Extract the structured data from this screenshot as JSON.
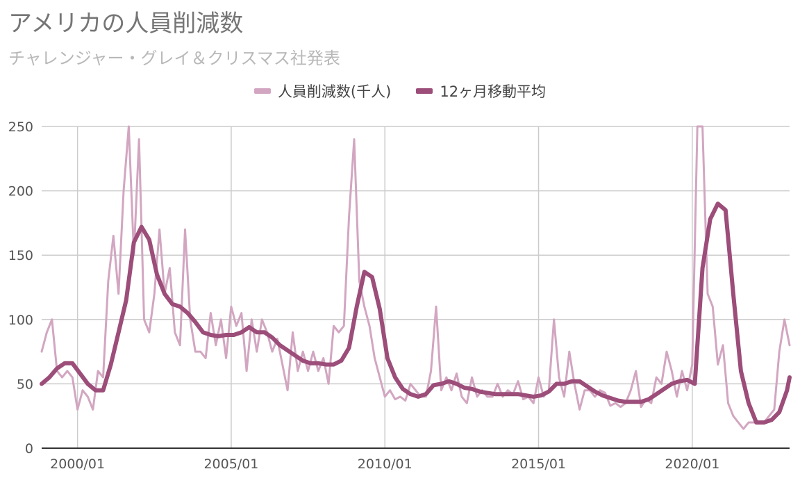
{
  "title": "アメリカの人員削減数",
  "subtitle": "チャレンジャー・グレイ＆クリスマス社発表",
  "colors": {
    "raw": "#d2a6c1",
    "avg": "#9c4d79",
    "grid": "#cccccc",
    "axis": "#333333"
  },
  "chart_data": {
    "type": "line",
    "title": "アメリカの人員削減数",
    "subtitle": "チャレンジャー・グレイ＆クリスマス社発表",
    "legend_position": "top",
    "grid": true,
    "ylim": [
      0,
      250
    ],
    "y_ticks": [
      0,
      50,
      100,
      150,
      200,
      250
    ],
    "x_range": [
      "1998-11",
      "2023-03"
    ],
    "x_ticks": [
      {
        "date": "2000-01",
        "label": "2000/01"
      },
      {
        "date": "2005-01",
        "label": "2005/01"
      },
      {
        "date": "2010-01",
        "label": "2010/01"
      },
      {
        "date": "2015-01",
        "label": "2015/01"
      },
      {
        "date": "2020-01",
        "label": "2020/01"
      }
    ],
    "series": [
      {
        "name": "人員削減数(千人)",
        "color": "#d2a6c1",
        "width": 3,
        "points": [
          [
            "1998-11",
            75
          ],
          [
            "1999-01",
            90
          ],
          [
            "1999-03",
            100
          ],
          [
            "1999-05",
            60
          ],
          [
            "1999-07",
            55
          ],
          [
            "1999-09",
            60
          ],
          [
            "1999-11",
            55
          ],
          [
            "2000-01",
            30
          ],
          [
            "2000-03",
            45
          ],
          [
            "2000-05",
            40
          ],
          [
            "2000-07",
            30
          ],
          [
            "2000-09",
            60
          ],
          [
            "2000-11",
            55
          ],
          [
            "2001-01",
            130
          ],
          [
            "2001-03",
            165
          ],
          [
            "2001-05",
            120
          ],
          [
            "2001-07",
            200
          ],
          [
            "2001-09",
            250
          ],
          [
            "2001-11",
            150
          ],
          [
            "2002-01",
            240
          ],
          [
            "2002-03",
            100
          ],
          [
            "2002-05",
            90
          ],
          [
            "2002-07",
            120
          ],
          [
            "2002-09",
            170
          ],
          [
            "2002-11",
            120
          ],
          [
            "2003-01",
            140
          ],
          [
            "2003-03",
            90
          ],
          [
            "2003-05",
            80
          ],
          [
            "2003-07",
            170
          ],
          [
            "2003-09",
            100
          ],
          [
            "2003-11",
            75
          ],
          [
            "2004-01",
            75
          ],
          [
            "2004-03",
            70
          ],
          [
            "2004-05",
            105
          ],
          [
            "2004-07",
            80
          ],
          [
            "2004-09",
            100
          ],
          [
            "2004-11",
            70
          ],
          [
            "2005-01",
            110
          ],
          [
            "2005-03",
            95
          ],
          [
            "2005-05",
            105
          ],
          [
            "2005-07",
            60
          ],
          [
            "2005-09",
            100
          ],
          [
            "2005-11",
            75
          ],
          [
            "2006-01",
            100
          ],
          [
            "2006-03",
            90
          ],
          [
            "2006-05",
            75
          ],
          [
            "2006-07",
            85
          ],
          [
            "2006-09",
            65
          ],
          [
            "2006-11",
            45
          ],
          [
            "2007-01",
            90
          ],
          [
            "2007-03",
            60
          ],
          [
            "2007-05",
            75
          ],
          [
            "2007-07",
            60
          ],
          [
            "2007-09",
            75
          ],
          [
            "2007-11",
            60
          ],
          [
            "2008-01",
            70
          ],
          [
            "2008-03",
            50
          ],
          [
            "2008-05",
            95
          ],
          [
            "2008-07",
            90
          ],
          [
            "2008-09",
            95
          ],
          [
            "2008-11",
            180
          ],
          [
            "2009-01",
            240
          ],
          [
            "2009-03",
            130
          ],
          [
            "2009-05",
            110
          ],
          [
            "2009-07",
            95
          ],
          [
            "2009-09",
            70
          ],
          [
            "2009-11",
            55
          ],
          [
            "2010-01",
            40
          ],
          [
            "2010-03",
            45
          ],
          [
            "2010-05",
            38
          ],
          [
            "2010-07",
            40
          ],
          [
            "2010-09",
            37
          ],
          [
            "2010-11",
            50
          ],
          [
            "2011-01",
            45
          ],
          [
            "2011-03",
            40
          ],
          [
            "2011-05",
            40
          ],
          [
            "2011-07",
            60
          ],
          [
            "2011-09",
            110
          ],
          [
            "2011-11",
            45
          ],
          [
            "2012-01",
            55
          ],
          [
            "2012-03",
            45
          ],
          [
            "2012-05",
            58
          ],
          [
            "2012-07",
            40
          ],
          [
            "2012-09",
            35
          ],
          [
            "2012-11",
            55
          ],
          [
            "2013-01",
            40
          ],
          [
            "2013-03",
            45
          ],
          [
            "2013-05",
            40
          ],
          [
            "2013-07",
            40
          ],
          [
            "2013-09",
            50
          ],
          [
            "2013-11",
            40
          ],
          [
            "2014-01",
            45
          ],
          [
            "2014-03",
            42
          ],
          [
            "2014-05",
            52
          ],
          [
            "2014-07",
            38
          ],
          [
            "2014-09",
            40
          ],
          [
            "2014-11",
            35
          ],
          [
            "2015-01",
            55
          ],
          [
            "2015-03",
            40
          ],
          [
            "2015-05",
            45
          ],
          [
            "2015-07",
            100
          ],
          [
            "2015-09",
            55
          ],
          [
            "2015-11",
            40
          ],
          [
            "2016-01",
            75
          ],
          [
            "2016-03",
            50
          ],
          [
            "2016-05",
            30
          ],
          [
            "2016-07",
            45
          ],
          [
            "2016-09",
            45
          ],
          [
            "2016-11",
            40
          ],
          [
            "2017-01",
            45
          ],
          [
            "2017-03",
            43
          ],
          [
            "2017-05",
            33
          ],
          [
            "2017-07",
            35
          ],
          [
            "2017-09",
            32
          ],
          [
            "2017-11",
            35
          ],
          [
            "2018-01",
            45
          ],
          [
            "2018-03",
            60
          ],
          [
            "2018-05",
            32
          ],
          [
            "2018-07",
            38
          ],
          [
            "2018-09",
            35
          ],
          [
            "2018-11",
            55
          ],
          [
            "2019-01",
            50
          ],
          [
            "2019-03",
            75
          ],
          [
            "2019-05",
            60
          ],
          [
            "2019-07",
            40
          ],
          [
            "2019-09",
            60
          ],
          [
            "2019-11",
            45
          ],
          [
            "2020-01",
            65
          ],
          [
            "2020-03",
            250
          ],
          [
            "2020-05",
            250
          ],
          [
            "2020-07",
            120
          ],
          [
            "2020-09",
            110
          ],
          [
            "2020-11",
            65
          ],
          [
            "2021-01",
            80
          ],
          [
            "2021-03",
            35
          ],
          [
            "2021-05",
            25
          ],
          [
            "2021-07",
            20
          ],
          [
            "2021-09",
            15
          ],
          [
            "2021-11",
            20
          ],
          [
            "2022-01",
            20
          ],
          [
            "2022-03",
            20
          ],
          [
            "2022-05",
            20
          ],
          [
            "2022-07",
            25
          ],
          [
            "2022-09",
            30
          ],
          [
            "2022-11",
            75
          ],
          [
            "2023-01",
            100
          ],
          [
            "2023-03",
            80
          ]
        ]
      },
      {
        "name": "12ヶ月移動平均",
        "color": "#9c4d79",
        "width": 6,
        "points": [
          [
            "1998-11",
            50
          ],
          [
            "1999-02",
            55
          ],
          [
            "1999-05",
            62
          ],
          [
            "1999-08",
            66
          ],
          [
            "1999-11",
            66
          ],
          [
            "2000-02",
            58
          ],
          [
            "2000-05",
            50
          ],
          [
            "2000-08",
            45
          ],
          [
            "2000-11",
            45
          ],
          [
            "2001-02",
            65
          ],
          [
            "2001-05",
            90
          ],
          [
            "2001-08",
            115
          ],
          [
            "2001-11",
            160
          ],
          [
            "2002-02",
            172
          ],
          [
            "2002-05",
            162
          ],
          [
            "2002-08",
            135
          ],
          [
            "2002-11",
            120
          ],
          [
            "2003-02",
            112
          ],
          [
            "2003-05",
            110
          ],
          [
            "2003-08",
            105
          ],
          [
            "2003-11",
            98
          ],
          [
            "2004-02",
            90
          ],
          [
            "2004-05",
            88
          ],
          [
            "2004-08",
            87
          ],
          [
            "2004-11",
            88
          ],
          [
            "2005-02",
            88
          ],
          [
            "2005-05",
            90
          ],
          [
            "2005-08",
            94
          ],
          [
            "2005-11",
            90
          ],
          [
            "2006-02",
            90
          ],
          [
            "2006-05",
            86
          ],
          [
            "2006-08",
            80
          ],
          [
            "2006-11",
            76
          ],
          [
            "2007-02",
            72
          ],
          [
            "2007-05",
            68
          ],
          [
            "2007-08",
            66
          ],
          [
            "2007-11",
            66
          ],
          [
            "2008-02",
            65
          ],
          [
            "2008-05",
            65
          ],
          [
            "2008-08",
            68
          ],
          [
            "2008-11",
            78
          ],
          [
            "2009-02",
            110
          ],
          [
            "2009-05",
            137
          ],
          [
            "2009-08",
            133
          ],
          [
            "2009-11",
            108
          ],
          [
            "2010-02",
            70
          ],
          [
            "2010-05",
            55
          ],
          [
            "2010-08",
            46
          ],
          [
            "2010-11",
            42
          ],
          [
            "2011-02",
            40
          ],
          [
            "2011-05",
            42
          ],
          [
            "2011-08",
            49
          ],
          [
            "2011-11",
            50
          ],
          [
            "2012-02",
            52
          ],
          [
            "2012-05",
            50
          ],
          [
            "2012-08",
            47
          ],
          [
            "2012-11",
            46
          ],
          [
            "2013-02",
            44
          ],
          [
            "2013-05",
            43
          ],
          [
            "2013-08",
            42
          ],
          [
            "2013-11",
            42
          ],
          [
            "2014-02",
            42
          ],
          [
            "2014-05",
            42
          ],
          [
            "2014-08",
            41
          ],
          [
            "2014-11",
            40
          ],
          [
            "2015-02",
            41
          ],
          [
            "2015-05",
            44
          ],
          [
            "2015-08",
            50
          ],
          [
            "2015-11",
            50
          ],
          [
            "2016-02",
            52
          ],
          [
            "2016-05",
            52
          ],
          [
            "2016-08",
            48
          ],
          [
            "2016-11",
            44
          ],
          [
            "2017-02",
            41
          ],
          [
            "2017-05",
            39
          ],
          [
            "2017-08",
            37
          ],
          [
            "2017-11",
            36
          ],
          [
            "2018-02",
            36
          ],
          [
            "2018-05",
            36
          ],
          [
            "2018-08",
            38
          ],
          [
            "2018-11",
            42
          ],
          [
            "2019-02",
            46
          ],
          [
            "2019-05",
            50
          ],
          [
            "2019-08",
            52
          ],
          [
            "2019-11",
            53
          ],
          [
            "2020-02",
            50
          ],
          [
            "2020-05",
            140
          ],
          [
            "2020-08",
            178
          ],
          [
            "2020-11",
            190
          ],
          [
            "2021-02",
            185
          ],
          [
            "2021-05",
            120
          ],
          [
            "2021-08",
            60
          ],
          [
            "2021-11",
            35
          ],
          [
            "2022-02",
            20
          ],
          [
            "2022-05",
            20
          ],
          [
            "2022-08",
            22
          ],
          [
            "2022-11",
            28
          ],
          [
            "2023-02",
            45
          ],
          [
            "2023-03",
            55
          ]
        ]
      }
    ]
  }
}
